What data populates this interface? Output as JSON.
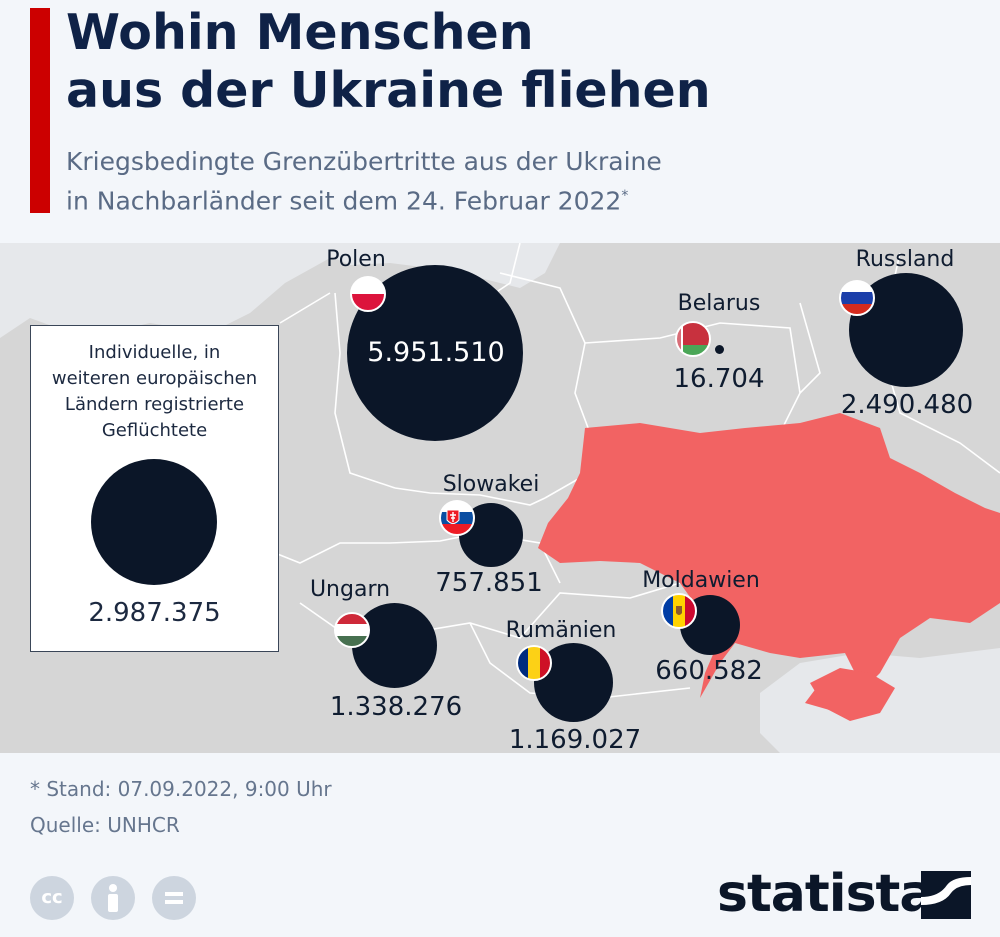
{
  "header": {
    "title_line1": "Wohin Menschen",
    "title_line2": "aus der Ukraine fliehen",
    "subtitle_line1": "Kriegsbedingte Grenzübertritte aus der Ukraine",
    "subtitle_line2": "in Nachbarländer seit dem 24. Februar 2022",
    "subtitle_marker": "*"
  },
  "map": {
    "highlight_color": "#f26363",
    "land_color": "#d6d6d6",
    "bubble_color": "#0b1628",
    "countries": [
      {
        "name": "Polen",
        "value": "5.951.510",
        "refugees": 5951510,
        "flag": "poland-flag"
      },
      {
        "name": "Russland",
        "value": "2.490.480",
        "refugees": 2490480,
        "flag": "russia-flag"
      },
      {
        "name": "Belarus",
        "value": "16.704",
        "refugees": 16704,
        "flag": "belarus-flag"
      },
      {
        "name": "Slowakei",
        "value": "757.851",
        "refugees": 757851,
        "flag": "slovakia-flag"
      },
      {
        "name": "Ungarn",
        "value": "1.338.276",
        "refugees": 1338276,
        "flag": "hungary-flag"
      },
      {
        "name": "Rumänien",
        "value": "1.169.027",
        "refugees": 1169027,
        "flag": "romania-flag"
      },
      {
        "name": "Moldawien",
        "value": "660.582",
        "refugees": 660582,
        "flag": "moldova-flag"
      }
    ]
  },
  "legend": {
    "line1": "Individuelle, in",
    "line2": "weiteren europäischen",
    "line3": "Ländern registrierte",
    "line4": "Geflüchtete",
    "value": "2.987.375",
    "refugees": 2987375
  },
  "footer": {
    "footnote": "* Stand: 07.09.2022, 9:00 Uhr",
    "source": "Quelle: UNHCR",
    "brand": "statista",
    "license_icons": [
      "cc-icon",
      "attribution-icon",
      "no-derivatives-icon"
    ]
  }
}
